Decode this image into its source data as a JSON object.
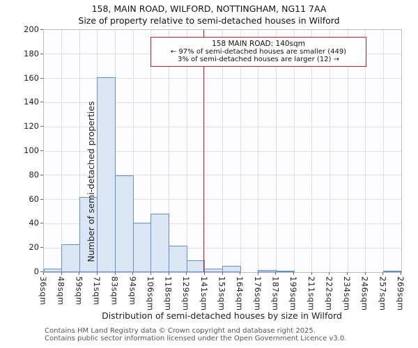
{
  "title": "158, MAIN ROAD, WILFORD, NOTTINGHAM, NG11 7AA",
  "subtitle": "Size of property relative to semi-detached houses in Wilford",
  "annotation": {
    "line1": "158 MAIN ROAD: 140sqm",
    "line2": "← 97% of semi-detached houses are smaller (449)",
    "line3": "3% of semi-detached houses are larger (12) →"
  },
  "footer": {
    "line1": "Contains HM Land Registry data © Crown copyright and database right 2025.",
    "line2": "Contains public sector information licensed under the Open Government Licence v3.0."
  },
  "chart_data": {
    "type": "bar",
    "title": "158, MAIN ROAD, WILFORD, NOTTINGHAM, NG11 7AA",
    "subtitle": "Size of property relative to semi-detached houses in Wilford",
    "xlabel": "Distribution of semi-detached houses by size in Wilford",
    "ylabel": "Number of semi-detached properties",
    "categories": [
      "36sqm",
      "48sqm",
      "59sqm",
      "71sqm",
      "83sqm",
      "94sqm",
      "106sqm",
      "118sqm",
      "129sqm",
      "141sqm",
      "153sqm",
      "164sqm",
      "176sqm",
      "187sqm",
      "199sqm",
      "211sqm",
      "222sqm",
      "234sqm",
      "246sqm",
      "257sqm",
      "269sqm"
    ],
    "values": [
      3,
      23,
      62,
      161,
      80,
      41,
      48,
      22,
      10,
      3,
      5,
      0,
      2,
      1,
      0,
      0,
      0,
      0,
      0,
      1
    ],
    "ylim": [
      0,
      200
    ],
    "ytick_step": 20,
    "x_range_sqm": [
      36,
      269
    ],
    "marker_value_sqm": 140,
    "marker_color": "#bb2222",
    "bar_fill": "#dbe6f4",
    "bar_border": "#6a8fc8",
    "grid": true,
    "legend_position": "none"
  }
}
